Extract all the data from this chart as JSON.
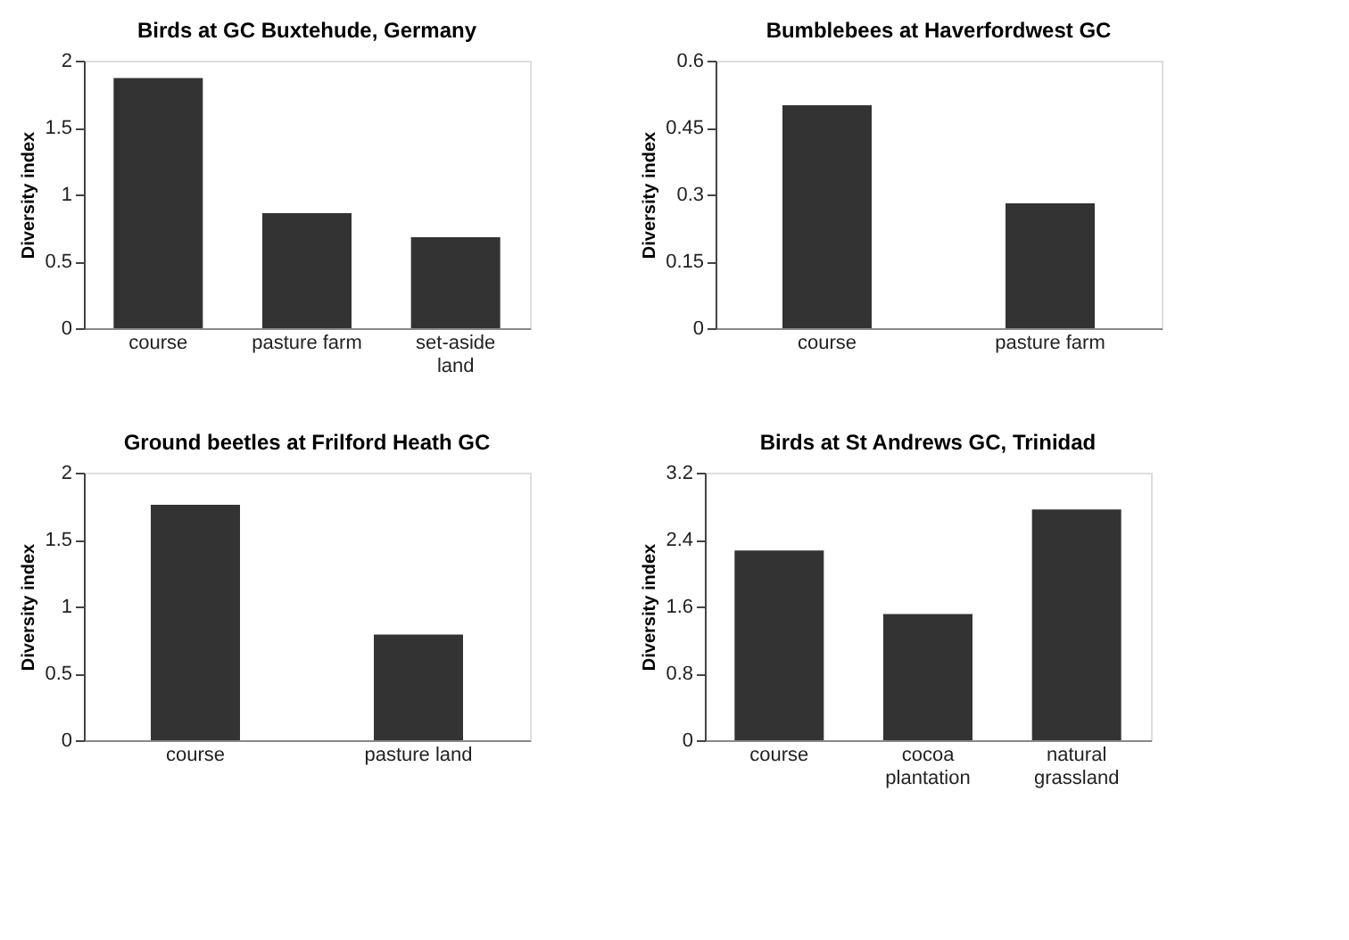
{
  "chart_data": [
    {
      "type": "bar",
      "title": "Birds at GC Buxtehude, Germany",
      "ylabel": "Diversity index",
      "categories": [
        "course",
        "pasture farm",
        "set-aside land"
      ],
      "values": [
        1.87,
        0.86,
        0.68
      ],
      "color": "#333333",
      "ylim": [
        0,
        2
      ],
      "yticks": [
        0,
        0.5,
        1,
        1.5,
        2
      ],
      "grid": false
    },
    {
      "type": "bar",
      "title": "Bumblebees at Haverfordwest GC",
      "ylabel": "Diversity index",
      "categories": [
        "course",
        "pasture farm"
      ],
      "values": [
        0.5,
        0.28
      ],
      "color": "#333333",
      "ylim": [
        0,
        0.6
      ],
      "yticks": [
        0,
        0.15,
        0.3,
        0.45,
        0.6
      ],
      "grid": false
    },
    {
      "type": "bar",
      "title": "Ground beetles at Frilford Heath GC",
      "ylabel": "Diversity index",
      "categories": [
        "course",
        "pasture land"
      ],
      "values": [
        1.76,
        0.79
      ],
      "color": "#333333",
      "ylim": [
        0,
        2
      ],
      "yticks": [
        0,
        0.5,
        1,
        1.5,
        2
      ],
      "grid": false
    },
    {
      "type": "bar",
      "title": "Birds at St Andrews GC, Trinidad",
      "ylabel": "Diversity index",
      "categories": [
        "course",
        "cocoa plantation",
        "natural grassland"
      ],
      "values": [
        2.27,
        1.51,
        2.76
      ],
      "color": "#333333",
      "ylim": [
        0,
        3.2
      ],
      "yticks": [
        0,
        0.8,
        1.6,
        2.4,
        3.2
      ],
      "grid": false
    }
  ]
}
